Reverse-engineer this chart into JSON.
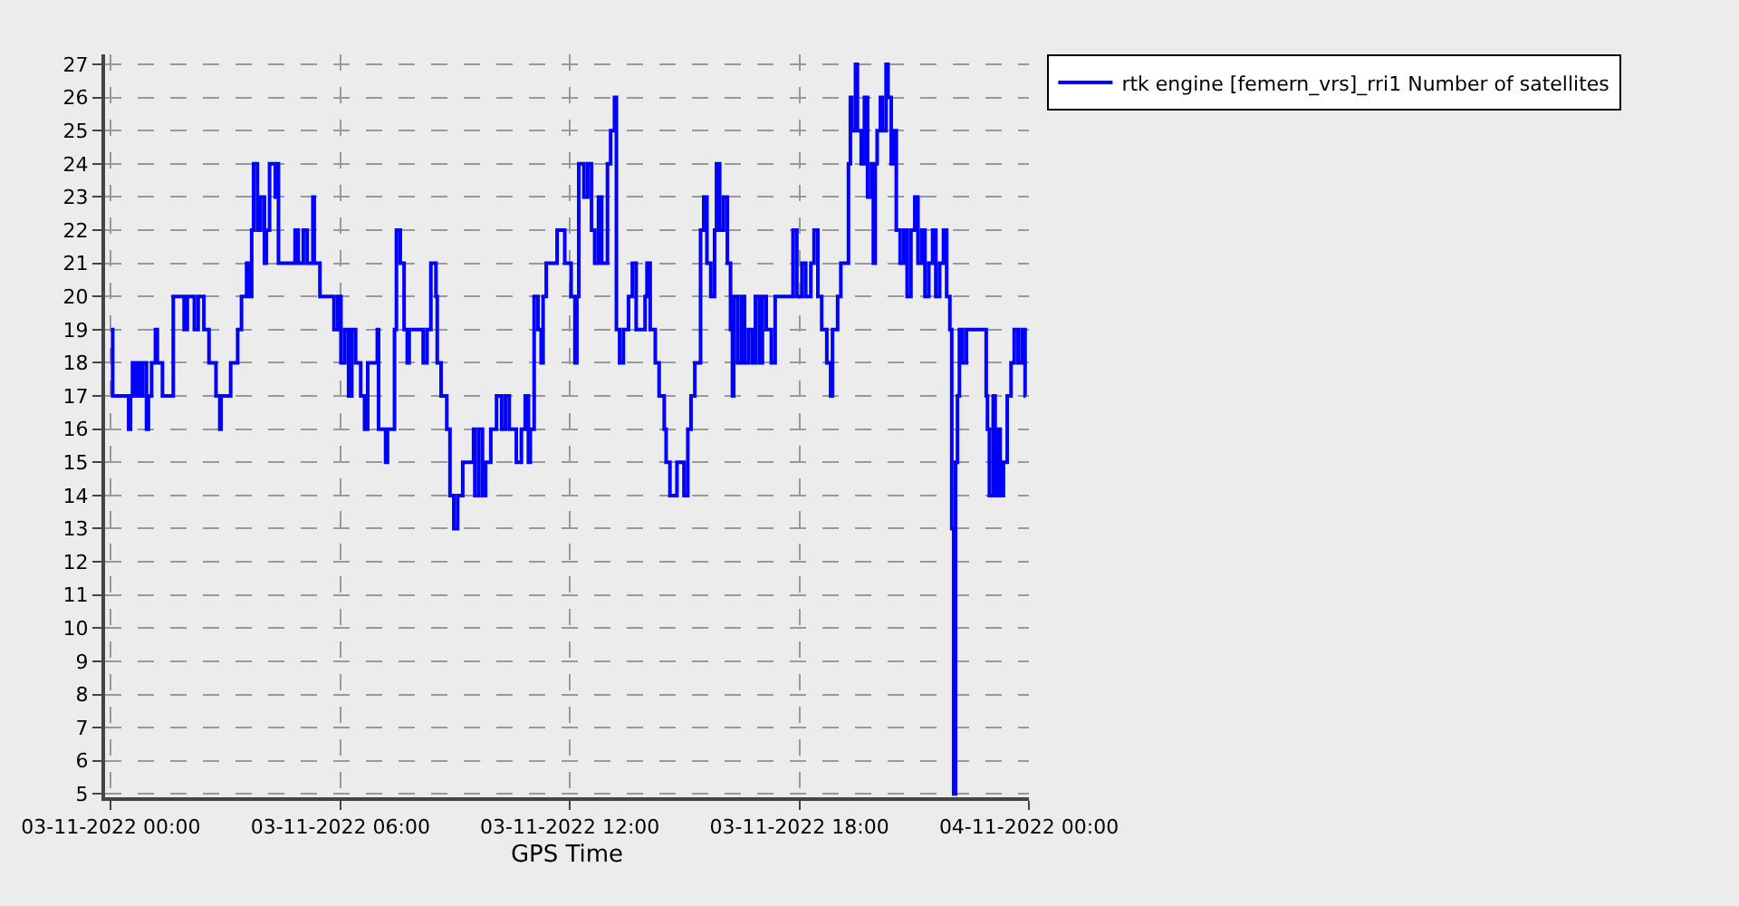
{
  "chart_data": {
    "type": "step",
    "xlabel": "GPS Time",
    "x": [
      "2022-11-03T00:00",
      "2022-11-03T00:03",
      "2022-11-03T00:28",
      "2022-11-03T00:31",
      "2022-11-03T00:34",
      "2022-11-03T00:39",
      "2022-11-03T00:42",
      "2022-11-03T00:47",
      "2022-11-03T00:50",
      "2022-11-03T00:56",
      "2022-11-03T00:59",
      "2022-11-03T01:04",
      "2022-11-03T01:10",
      "2022-11-03T01:13",
      "2022-11-03T01:21",
      "2022-11-03T01:38",
      "2022-11-03T01:55",
      "2022-11-03T02:00",
      "2022-11-03T02:11",
      "2022-11-03T02:17",
      "2022-11-03T02:26",
      "2022-11-03T02:34",
      "2022-11-03T02:45",
      "2022-11-03T02:51",
      "2022-11-03T02:53",
      "2022-11-03T03:08",
      "2022-11-03T03:19",
      "2022-11-03T03:25",
      "2022-11-03T03:33",
      "2022-11-03T03:38",
      "2022-11-03T03:41",
      "2022-11-03T03:44",
      "2022-11-03T03:50",
      "2022-11-03T03:55",
      "2022-11-03T04:01",
      "2022-11-03T04:04",
      "2022-11-03T04:09",
      "2022-11-03T04:18",
      "2022-11-03T04:20",
      "2022-11-03T04:23",
      "2022-11-03T04:49",
      "2022-11-03T04:54",
      "2022-11-03T05:02",
      "2022-11-03T05:08",
      "2022-11-03T05:17",
      "2022-11-03T05:19",
      "2022-11-03T05:28",
      "2022-11-03T05:50",
      "2022-11-03T05:56",
      "2022-11-03T06:01",
      "2022-11-03T06:07",
      "2022-11-03T06:13",
      "2022-11-03T06:18",
      "2022-11-03T06:24",
      "2022-11-03T06:32",
      "2022-11-03T06:38",
      "2022-11-03T06:43",
      "2022-11-03T06:58",
      "2022-11-03T07:00",
      "2022-11-03T07:11",
      "2022-11-03T07:14",
      "2022-11-03T07:25",
      "2022-11-03T07:28",
      "2022-11-03T07:34",
      "2022-11-03T07:40",
      "2022-11-03T07:45",
      "2022-11-03T07:48",
      "2022-11-03T08:10",
      "2022-11-03T08:16",
      "2022-11-03T08:22",
      "2022-11-03T08:30",
      "2022-11-03T08:32",
      "2022-11-03T08:38",
      "2022-11-03T08:47",
      "2022-11-03T08:52",
      "2022-11-03T08:58",
      "2022-11-03T09:04",
      "2022-11-03T09:12",
      "2022-11-03T09:29",
      "2022-11-03T09:31",
      "2022-11-03T09:37",
      "2022-11-03T09:43",
      "2022-11-03T09:48",
      "2022-11-03T09:56",
      "2022-11-03T10:05",
      "2022-11-03T10:13",
      "2022-11-03T10:19",
      "2022-11-03T10:25",
      "2022-11-03T10:36",
      "2022-11-03T10:44",
      "2022-11-03T10:50",
      "2022-11-03T10:55",
      "2022-11-03T10:58",
      "2022-11-03T11:04",
      "2022-11-03T11:10",
      "2022-11-03T11:15",
      "2022-11-03T11:18",
      "2022-11-03T11:23",
      "2022-11-03T11:40",
      "2022-11-03T11:52",
      "2022-11-03T12:02",
      "2022-11-03T12:08",
      "2022-11-03T12:11",
      "2022-11-03T12:14",
      "2022-11-03T12:22",
      "2022-11-03T12:28",
      "2022-11-03T12:34",
      "2022-11-03T12:39",
      "2022-11-03T12:45",
      "2022-11-03T12:50",
      "2022-11-03T12:59",
      "2022-11-03T13:04",
      "2022-11-03T13:10",
      "2022-11-03T13:13",
      "2022-11-03T13:18",
      "2022-11-03T13:24",
      "2022-11-03T13:32",
      "2022-11-03T13:38",
      "2022-11-03T13:44",
      "2022-11-03T13:58",
      "2022-11-03T14:01",
      "2022-11-03T14:06",
      "2022-11-03T14:14",
      "2022-11-03T14:20",
      "2022-11-03T14:28",
      "2022-11-03T14:31",
      "2022-11-03T14:37",
      "2022-11-03T14:48",
      "2022-11-03T14:59",
      "2022-11-03T15:05",
      "2022-11-03T15:10",
      "2022-11-03T15:16",
      "2022-11-03T15:25",
      "2022-11-03T15:30",
      "2022-11-03T15:35",
      "2022-11-03T15:41",
      "2022-11-03T15:47",
      "2022-11-03T15:50",
      "2022-11-03T15:55",
      "2022-11-03T16:01",
      "2022-11-03T16:07",
      "2022-11-03T16:12",
      "2022-11-03T16:15",
      "2022-11-03T16:17",
      "2022-11-03T16:23",
      "2022-11-03T16:29",
      "2022-11-03T16:34",
      "2022-11-03T16:40",
      "2022-11-03T16:46",
      "2022-11-03T16:51",
      "2022-11-03T16:57",
      "2022-11-03T17:02",
      "2022-11-03T17:08",
      "2022-11-03T17:16",
      "2022-11-03T17:22",
      "2022-11-03T17:50",
      "2022-11-03T17:56",
      "2022-11-03T18:04",
      "2022-11-03T18:10",
      "2022-11-03T18:18",
      "2022-11-03T18:23",
      "2022-11-03T18:29",
      "2022-11-03T18:35",
      "2022-11-03T18:43",
      "2022-11-03T18:49",
      "2022-11-03T18:52",
      "2022-11-03T19:00",
      "2022-11-03T19:05",
      "2022-11-03T19:17",
      "2022-11-03T19:20",
      "2022-11-03T19:22",
      "2022-11-03T19:28",
      "2022-11-03T19:31",
      "2022-11-03T19:37",
      "2022-11-03T19:42",
      "2022-11-03T19:47",
      "2022-11-03T19:53",
      "2022-11-03T19:56",
      "2022-11-03T19:59",
      "2022-11-03T20:02",
      "2022-11-03T20:07",
      "2022-11-03T20:10",
      "2022-11-03T20:16",
      "2022-11-03T20:19",
      "2022-11-03T20:24",
      "2022-11-03T20:27",
      "2022-11-03T20:32",
      "2022-11-03T20:38",
      "2022-11-03T20:44",
      "2022-11-03T20:49",
      "2022-11-03T20:55",
      "2022-11-03T21:01",
      "2022-11-03T21:06",
      "2022-11-03T21:12",
      "2022-11-03T21:17",
      "2022-11-03T21:23",
      "2022-11-03T21:29",
      "2022-11-03T21:34",
      "2022-11-03T21:40",
      "2022-11-03T21:46",
      "2022-11-03T21:51",
      "2022-11-03T21:56",
      "2022-11-03T21:59",
      "2022-11-03T22:02",
      "2022-11-03T22:05",
      "2022-11-03T22:08",
      "2022-11-03T22:11",
      "2022-11-03T22:16",
      "2022-11-03T22:22",
      "2022-11-03T22:53",
      "2022-11-03T22:55",
      "2022-11-03T22:58",
      "2022-11-03T23:04",
      "2022-11-03T23:07",
      "2022-11-03T23:12",
      "2022-11-03T23:15",
      "2022-11-03T23:20",
      "2022-11-03T23:26",
      "2022-11-03T23:32",
      "2022-11-03T23:37",
      "2022-11-03T23:43",
      "2022-11-03T23:49",
      "2022-11-03T23:54",
      "2022-11-03T23:55"
    ],
    "series": [
      {
        "name": "rtk engine [femern_vrs]_rri1 Number of satellites",
        "color": "#0000ff",
        "values": [
          19,
          17,
          16,
          17,
          18,
          17,
          18,
          17,
          18,
          16,
          17,
          18,
          19,
          18,
          17,
          20,
          19,
          20,
          19,
          20,
          19,
          18,
          17,
          16,
          17,
          18,
          19,
          20,
          21,
          20,
          22,
          24,
          22,
          23,
          21,
          22,
          24,
          23,
          24,
          21,
          22,
          21,
          22,
          21,
          23,
          21,
          20,
          19,
          20,
          18,
          19,
          17,
          19,
          18,
          17,
          16,
          18,
          19,
          16,
          15,
          16,
          19,
          22,
          21,
          19,
          18,
          19,
          18,
          19,
          21,
          20,
          18,
          17,
          16,
          14,
          13,
          14,
          15,
          16,
          14,
          16,
          14,
          15,
          16,
          17,
          16,
          17,
          16,
          15,
          16,
          17,
          15,
          16,
          20,
          19,
          18,
          20,
          21,
          22,
          21,
          20,
          18,
          20,
          24,
          23,
          24,
          22,
          21,
          23,
          21,
          24,
          25,
          26,
          19,
          18,
          19,
          20,
          21,
          19,
          20,
          21,
          19,
          18,
          17,
          16,
          15,
          14,
          15,
          14,
          16,
          17,
          18,
          22,
          23,
          21,
          20,
          22,
          24,
          22,
          23,
          21,
          19,
          17,
          20,
          18,
          20,
          18,
          19,
          18,
          20,
          18,
          20,
          19,
          18,
          20,
          22,
          20,
          21,
          20,
          21,
          22,
          20,
          19,
          18,
          17,
          19,
          20,
          21,
          24,
          26,
          25,
          27,
          25,
          24,
          26,
          23,
          24,
          21,
          24,
          25,
          26,
          25,
          27,
          26,
          24,
          25,
          22,
          21,
          22,
          20,
          22,
          23,
          21,
          22,
          20,
          21,
          22,
          20,
          21,
          22,
          20,
          19,
          13,
          5,
          15,
          17,
          19,
          18,
          19,
          17,
          16,
          14,
          17,
          14,
          16,
          14,
          15,
          17,
          18,
          19,
          18,
          19,
          17,
          17
        ]
      }
    ],
    "xlim": [
      "2022-11-02T23:51",
      "2022-11-04T00:00"
    ],
    "xticks": [
      {
        "value": "2022-11-03T00:00",
        "label": "03-11-2022 00:00"
      },
      {
        "value": "2022-11-03T06:00",
        "label": "03-11-2022 06:00"
      },
      {
        "value": "2022-11-03T12:00",
        "label": "03-11-2022 12:00"
      },
      {
        "value": "2022-11-03T18:00",
        "label": "03-11-2022 18:00"
      },
      {
        "value": "2022-11-04T00:00",
        "label": "04-11-2022 00:00"
      }
    ],
    "ylim": [
      4.9,
      27.3
    ],
    "yticks": [
      5,
      6,
      7,
      8,
      9,
      10,
      11,
      12,
      13,
      14,
      15,
      16,
      17,
      18,
      19,
      20,
      21,
      22,
      23,
      24,
      25,
      26,
      27
    ],
    "grid": true,
    "legend": "top right",
    "marker": "none",
    "line_style": "solid"
  }
}
